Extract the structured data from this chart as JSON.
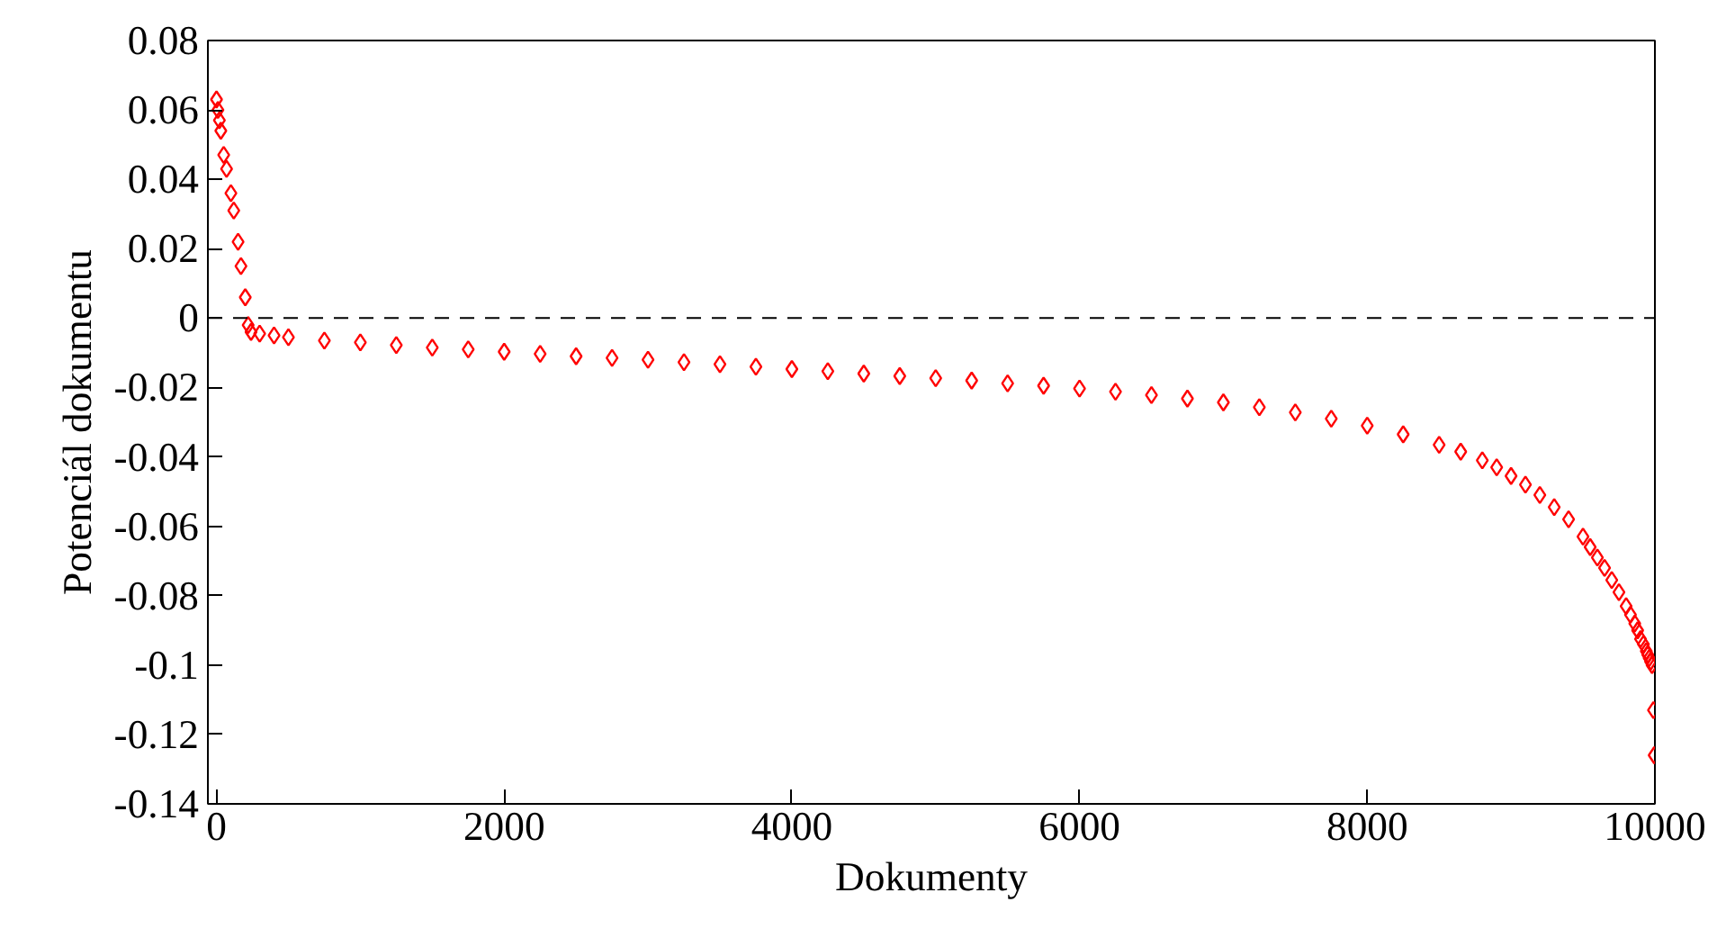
{
  "chart_data": {
    "type": "scatter",
    "xlabel": "Dokumenty",
    "ylabel": "Potenciál dokumentu",
    "marker": "diamond",
    "grid": false,
    "x": [
      0,
      10,
      20,
      30,
      50,
      70,
      100,
      120,
      150,
      170,
      200,
      220,
      240,
      300,
      400,
      500,
      750,
      1000,
      1250,
      1500,
      1750,
      2000,
      2250,
      2500,
      2750,
      3000,
      3250,
      3500,
      3750,
      4000,
      4250,
      4500,
      4750,
      5000,
      5250,
      5500,
      5750,
      6000,
      6250,
      6500,
      6750,
      7000,
      7250,
      7500,
      7750,
      8000,
      8250,
      8500,
      8650,
      8800,
      8900,
      9000,
      9100,
      9200,
      9300,
      9400,
      9500,
      9550,
      9600,
      9650,
      9700,
      9750,
      9800,
      9830,
      9860,
      9880,
      9900,
      9920,
      9940,
      9950,
      9960,
      9970,
      9980,
      9990,
      9995
    ],
    "series": [
      {
        "color": "#ff0000",
        "values": [
          0.063,
          0.06,
          0.057,
          0.054,
          0.047,
          0.043,
          0.036,
          0.031,
          0.022,
          0.015,
          0.006,
          -0.002,
          -0.004,
          -0.0045,
          -0.005,
          -0.0055,
          -0.0065,
          -0.007,
          -0.0078,
          -0.0085,
          -0.009,
          -0.0097,
          -0.0103,
          -0.011,
          -0.0115,
          -0.012,
          -0.0127,
          -0.0133,
          -0.014,
          -0.0147,
          -0.0153,
          -0.016,
          -0.0167,
          -0.0173,
          -0.018,
          -0.0188,
          -0.0195,
          -0.0203,
          -0.0212,
          -0.0222,
          -0.0232,
          -0.0243,
          -0.0257,
          -0.0272,
          -0.029,
          -0.031,
          -0.0335,
          -0.0365,
          -0.0385,
          -0.041,
          -0.043,
          -0.0455,
          -0.048,
          -0.051,
          -0.0545,
          -0.058,
          -0.063,
          -0.066,
          -0.069,
          -0.072,
          -0.0755,
          -0.079,
          -0.083,
          -0.0855,
          -0.088,
          -0.09,
          -0.0925,
          -0.094,
          -0.096,
          -0.097,
          -0.098,
          -0.099,
          -0.1,
          -0.113,
          -0.126
        ]
      }
    ],
    "xlim": [
      -60,
      10000
    ],
    "ylim": [
      -0.14,
      0.08
    ],
    "xticks": [
      0,
      2000,
      4000,
      6000,
      8000,
      10000
    ],
    "yticks": [
      -0.14,
      -0.12,
      -0.1,
      -0.08,
      -0.06,
      -0.04,
      -0.02,
      0,
      0.02,
      0.04,
      0.06,
      0.08
    ],
    "ref_lines": [
      {
        "axis": "y",
        "value": 0,
        "color": "#000000",
        "line_style": "dashed"
      }
    ]
  }
}
